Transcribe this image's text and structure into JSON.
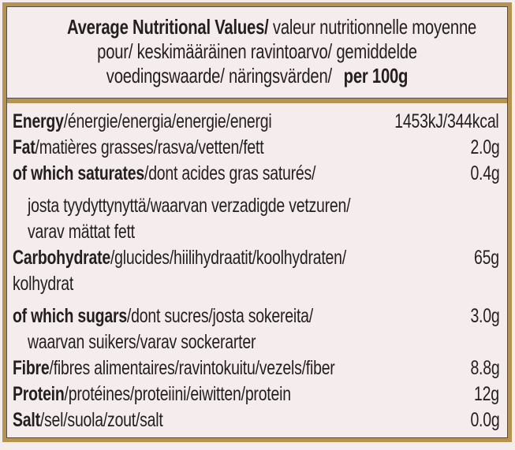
{
  "colors": {
    "gold_border": "#b69350",
    "inner_line": "#514f4e",
    "background": "#f5eced",
    "text": "#231f20"
  },
  "header": {
    "line1_bold": "Average Nutritional Values/",
    "line1_rest": " valeur nutritionnelle moyenne",
    "line2": "pour/ keskimääräinen ravintoarvo/ gemiddelde",
    "line3_rest": "voedingswaarde/ näringsvärden/",
    "line3_bold": "per 100g"
  },
  "body": {
    "rows": [
      {
        "label_bold": "Energy",
        "label_rest": "/énergie/energia/energie/energi",
        "value": "1453kJ/344kcal"
      },
      {
        "label_bold": "Fat",
        "label_rest": "/matières grasses/rasva/vetten/fett",
        "value": "2.0g"
      },
      {
        "label_bold": "of which saturates",
        "label_rest": "/dont acides gras saturés/",
        "value": "0.4g"
      },
      {
        "label_bold": "",
        "label_rest": "josta tyydyttynyttä/waarvan verzadigde vetzuren/",
        "value": ""
      },
      {
        "label_bold": "",
        "label_rest": "varav mättat fett",
        "value": ""
      },
      {
        "label_bold": "Carbohydrate",
        "label_rest": "/glucides/hiilihydraatit/koolhydraten/",
        "value": "65g"
      },
      {
        "label_bold": "",
        "label_rest": "kolhydrat",
        "value": ""
      },
      {
        "label_bold": "of which sugars",
        "label_rest": "/dont sucres/josta sokereita/",
        "value": "3.0g"
      },
      {
        "label_bold": "",
        "label_rest": "waarvan suikers/varav sockerarter",
        "value": ""
      },
      {
        "label_bold": "Fibre",
        "label_rest": "/fibres alimentaires/ravintokuitu/vezels/fiber",
        "value": "8.8g"
      },
      {
        "label_bold": "Protein",
        "label_rest": "/protéines/proteiini/eiwitten/protein",
        "value": "12g"
      },
      {
        "label_bold": "Salt",
        "label_rest": "/sel/suola/zout/salt",
        "value": "0.0g"
      }
    ]
  }
}
